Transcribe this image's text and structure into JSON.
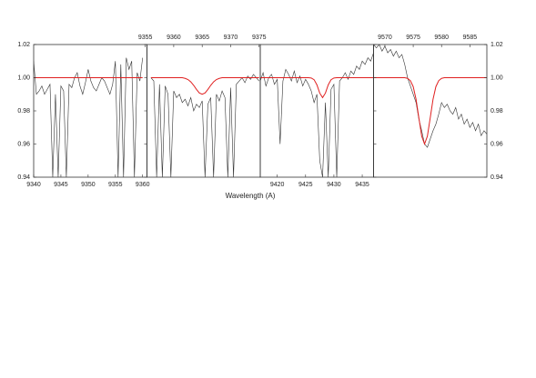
{
  "xlabel": "Wavelength (A)",
  "chart_data": [
    {
      "type": "line",
      "xlim": [
        9340,
        9360.8
      ],
      "xticks": [
        9340,
        9345,
        9350,
        9355,
        9360
      ],
      "xaxis_side": "bottom",
      "ylim": [
        0.94,
        1.02
      ],
      "yticks": [
        0.94,
        0.96,
        0.98,
        {
          "value": 1,
          "label": "1.00"
        },
        1.02
      ],
      "ytick_label_side": "left",
      "x": [
        9340,
        9340.5,
        9341,
        9341.5,
        9342,
        9342.5,
        9343,
        9343.5,
        9344,
        9344.5,
        9345,
        9345.5,
        9346,
        9346.5,
        9347,
        9347.5,
        9348,
        9348.5,
        9349,
        9349.5,
        9350,
        9350.5,
        9351,
        9351.5,
        9352,
        9352.5,
        9353,
        9353.5,
        9354,
        9354.5,
        9355,
        9355.5,
        9356,
        9356.5,
        9357,
        9357.5,
        9358,
        9358.5,
        9359,
        9359.5,
        9360
      ],
      "series": [
        {
          "color": "#333333",
          "values": [
            1.01,
            0.99,
            0.992,
            0.995,
            0.99,
            0.993,
            0.996,
            0.94,
            0.99,
            0.94,
            0.995,
            0.992,
            0.94,
            0.996,
            0.994,
            1.0,
            1.003,
            0.995,
            0.99,
            0.997,
            1.005,
            0.998,
            0.994,
            0.992,
            0.996,
            1.0,
            0.998,
            0.994,
            0.99,
            0.996,
            1.01,
            0.94,
            1.008,
            0.94,
            1.012,
            1.005,
            1.01,
            0.94,
            1.003,
            0.998,
            1.012
          ]
        },
        {
          "color": "#e02020",
          "values": [
            1,
            1,
            1,
            1,
            1,
            1,
            1,
            1,
            1,
            1,
            1,
            1,
            1,
            1,
            1,
            1,
            1,
            1,
            1,
            1,
            1,
            1,
            1,
            1,
            1,
            1,
            1,
            1,
            1,
            1,
            1,
            1,
            1,
            1,
            1,
            1,
            1,
            1,
            1,
            1,
            1
          ]
        }
      ]
    },
    {
      "type": "line",
      "xlim": [
        9355.3,
        9375.2
      ],
      "xticks": [
        9355,
        9360,
        9365,
        9370,
        9375
      ],
      "xaxis_side": "top",
      "ylim": [
        0.94,
        1.02
      ],
      "x": [
        9356,
        9356.5,
        9357,
        9357.5,
        9358,
        9358.5,
        9359,
        9359.5,
        9360,
        9360.5,
        9361,
        9361.5,
        9362,
        9362.5,
        9363,
        9363.5,
        9364,
        9364.5,
        9365,
        9365.5,
        9366,
        9366.5,
        9367,
        9367.5,
        9368,
        9368.5,
        9369,
        9369.5,
        9370,
        9370.5,
        9371,
        9371.5,
        9372,
        9372.5,
        9373,
        9373.5,
        9374,
        9374.5,
        9375
      ],
      "series": [
        {
          "color": "#333333",
          "values": [
            1.0,
            0.998,
            0.94,
            0.996,
            0.94,
            0.995,
            0.99,
            0.94,
            0.992,
            0.988,
            0.99,
            0.985,
            0.987,
            0.983,
            0.988,
            0.98,
            0.984,
            0.982,
            0.986,
            0.94,
            0.984,
            0.988,
            0.94,
            0.99,
            0.986,
            0.992,
            0.988,
            0.94,
            0.994,
            0.94,
            0.996,
            0.998,
            1.0,
            0.997,
            1.001,
            0.999,
            1.002,
            1.0,
            0.998
          ]
        },
        {
          "color": "#e02020",
          "values": [
            1,
            1,
            1,
            1,
            1,
            1,
            1,
            1,
            1,
            1,
            1,
            1,
            0.9996,
            0.9989,
            0.9975,
            0.9954,
            0.9929,
            0.9908,
            0.99,
            0.9908,
            0.9929,
            0.9954,
            0.9975,
            0.9989,
            0.9996,
            1,
            1,
            1,
            1,
            1,
            1,
            1,
            1,
            1,
            1,
            1,
            1,
            1,
            1
          ]
        }
      ]
    },
    {
      "type": "line",
      "xlim": [
        9417,
        9437
      ],
      "xticks": [
        9420,
        9425,
        9430,
        9435
      ],
      "xaxis_side": "bottom",
      "ylim": [
        0.94,
        1.02
      ],
      "x": [
        9417,
        9417.5,
        9418,
        9418.5,
        9419,
        9419.5,
        9420,
        9420.5,
        9421,
        9421.5,
        9422,
        9422.5,
        9423,
        9423.5,
        9424,
        9424.5,
        9425,
        9425.5,
        9426,
        9426.5,
        9427,
        9427.5,
        9428,
        9428.5,
        9429,
        9429.5,
        9430,
        9430.5,
        9431,
        9431.5,
        9432,
        9432.5,
        9433,
        9433.5,
        9434,
        9434.5,
        9435,
        9435.5,
        9436,
        9436.5,
        9437
      ],
      "series": [
        {
          "color": "#333333",
          "values": [
            0.998,
            1.003,
            0.995,
            1.0,
            1.002,
            0.996,
            0.999,
            0.96,
            0.998,
            1.005,
            1.002,
            0.998,
            1.004,
            0.997,
            1.001,
            0.995,
            0.999,
            0.996,
            0.992,
            0.985,
            0.99,
            0.95,
            0.94,
            0.985,
            0.94,
            0.993,
            0.996,
            0.94,
            0.998,
            1.0,
            1.003,
            0.999,
            1.004,
            1.002,
            1.007,
            1.005,
            1.01,
            1.008,
            1.012,
            1.01,
            1.015
          ]
        },
        {
          "color": "#e02020",
          "values": [
            1,
            1,
            1,
            1,
            1,
            1,
            1,
            1,
            1,
            1,
            1,
            1,
            1,
            1,
            1,
            1,
            1,
            1,
            0.9998,
            0.9988,
            0.9957,
            0.9907,
            0.988,
            0.9907,
            0.9957,
            0.9988,
            0.9998,
            1,
            1,
            1,
            1,
            1,
            1,
            1,
            1,
            1,
            1,
            1,
            1,
            1,
            1
          ]
        }
      ]
    },
    {
      "type": "line",
      "xlim": [
        9568,
        9588
      ],
      "xticks": [
        9570,
        9575,
        9580,
        9585
      ],
      "xaxis_side": "top",
      "ylim": [
        0.94,
        1.02
      ],
      "yticks": [
        0.94,
        0.96,
        0.98,
        {
          "value": 1,
          "label": "1.00"
        },
        1.02
      ],
      "ytick_label_side": "right",
      "x": [
        9568,
        9568.5,
        9569,
        9569.5,
        9570,
        9570.5,
        9571,
        9571.5,
        9572,
        9572.5,
        9573,
        9573.5,
        9574,
        9574.5,
        9575,
        9575.5,
        9576,
        9576.5,
        9577,
        9577.5,
        9578,
        9578.5,
        9579,
        9579.5,
        9580,
        9580.5,
        9581,
        9581.5,
        9582,
        9582.5,
        9583,
        9583.5,
        9584,
        9584.5,
        9585,
        9585.5,
        9586,
        9586.5,
        9587,
        9587.5,
        9588
      ],
      "series": [
        {
          "color": "#333333",
          "values": [
            1.02,
            1.018,
            1.02,
            1.016,
            1.019,
            1.015,
            1.017,
            1.013,
            1.016,
            1.012,
            1.014,
            1.008,
            1.0,
            0.995,
            0.99,
            0.985,
            0.975,
            0.968,
            0.96,
            0.958,
            0.963,
            0.968,
            0.972,
            0.978,
            0.985,
            0.982,
            0.984,
            0.98,
            0.978,
            0.982,
            0.975,
            0.978,
            0.972,
            0.975,
            0.97,
            0.973,
            0.968,
            0.972,
            0.965,
            0.968,
            0.966
          ]
        },
        {
          "color": "#e02020",
          "values": [
            1,
            1,
            1,
            1,
            1,
            1,
            1,
            1,
            1,
            1,
            1,
            1,
            0.9996,
            0.9982,
            0.9946,
            0.987,
            0.9757,
            0.9647,
            0.96,
            0.9647,
            0.9757,
            0.987,
            0.9946,
            0.9982,
            0.9996,
            1,
            1,
            1,
            1,
            1,
            1,
            1,
            1,
            1,
            1,
            1,
            1,
            1,
            1,
            1,
            1
          ]
        }
      ]
    }
  ]
}
